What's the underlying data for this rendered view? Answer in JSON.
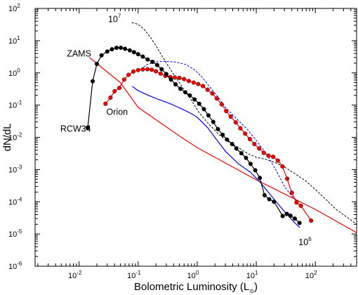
{
  "chart_data": {
    "type": "line",
    "xscale": "log",
    "yscale": "log",
    "xlim": [
      0.0018,
      500
    ],
    "ylim": [
      1e-06,
      100
    ],
    "xticks": [
      {
        "base": "10",
        "exp": "-2",
        "value": 0.01
      },
      {
        "base": "10",
        "exp": "-1",
        "value": 0.1
      },
      {
        "base": "10",
        "exp": "0",
        "value": 1
      },
      {
        "base": "10",
        "exp": "1",
        "value": 10
      },
      {
        "base": "10",
        "exp": "2",
        "value": 100
      }
    ],
    "yticks": [
      {
        "base": "10",
        "exp": "-6",
        "value": 1e-06
      },
      {
        "base": "10",
        "exp": "-5",
        "value": 1e-05
      },
      {
        "base": "10",
        "exp": "-4",
        "value": 0.0001
      },
      {
        "base": "10",
        "exp": "-3",
        "value": 0.001
      },
      {
        "base": "10",
        "exp": "-2",
        "value": 0.01
      },
      {
        "base": "10",
        "exp": "-1",
        "value": 0.1
      },
      {
        "base": "10",
        "exp": "0",
        "value": 1
      },
      {
        "base": "10",
        "exp": "1",
        "value": 10
      },
      {
        "base": "10",
        "exp": "2",
        "value": 100
      }
    ],
    "xlabel": "Bolometric Luminosity (L",
    "xlabel_sub": "⊙",
    "xlabel_close": ")",
    "ylabel": "dN/dL",
    "grid": false,
    "series": [
      {
        "name": "RCW34",
        "color": "#000000",
        "style": "solid-markers",
        "x": [
          0.014,
          0.017,
          0.02,
          0.024,
          0.03,
          0.036,
          0.043,
          0.051,
          0.06,
          0.072,
          0.085,
          0.1,
          0.12,
          0.145,
          0.175,
          0.21,
          0.25,
          0.3,
          0.36,
          0.43,
          0.52,
          0.63,
          0.75,
          0.9,
          1.08,
          1.3,
          1.55,
          1.87,
          2.24,
          2.7,
          3.2,
          3.9,
          4.6,
          5.6,
          6.7,
          8.0,
          9.6,
          11.5,
          13.8,
          16.6,
          20.0,
          28.0,
          33.0,
          38.0,
          45.0,
          54.0
        ],
        "y": [
          0.02,
          0.55,
          1.9,
          3.5,
          4.6,
          5.4,
          6.0,
          6.0,
          5.6,
          5.0,
          4.4,
          3.8,
          3.2,
          2.6,
          2.2,
          1.75,
          1.3,
          0.92,
          0.62,
          0.44,
          0.32,
          0.25,
          0.2,
          0.15,
          0.11,
          0.075,
          0.048,
          0.03,
          0.018,
          0.012,
          0.0085,
          0.0062,
          0.0045,
          0.0032,
          0.0023,
          0.0015,
          0.00095,
          0.00055,
          0.00016,
          0.00012,
          0.0001,
          3.6e-05,
          4.2e-05,
          3.7e-05,
          3e-05,
          2.2e-05
        ]
      },
      {
        "name": "Orion",
        "color": "#ff0000",
        "style": "solid-markers",
        "x": [
          0.028,
          0.034,
          0.04,
          0.048,
          0.058,
          0.069,
          0.083,
          0.1,
          0.12,
          0.144,
          0.17,
          0.2,
          0.24,
          0.29,
          0.35,
          0.42,
          0.5,
          0.6,
          0.72,
          0.87,
          1.04,
          1.25,
          1.5,
          1.8,
          2.15,
          2.6,
          3.1,
          3.7,
          4.5,
          5.4,
          6.5,
          7.8,
          9.3,
          11.2,
          13.4,
          16.1,
          19.3,
          23.2,
          27.8,
          33.4,
          40.0,
          48.0,
          57.0,
          85.0
        ],
        "y": [
          0.11,
          0.17,
          0.27,
          0.34,
          0.62,
          0.87,
          1.1,
          1.22,
          1.28,
          1.3,
          1.25,
          1.12,
          0.95,
          0.8,
          0.74,
          0.72,
          0.7,
          0.64,
          0.56,
          0.5,
          0.45,
          0.39,
          0.3,
          0.23,
          0.16,
          0.105,
          0.065,
          0.044,
          0.029,
          0.019,
          0.013,
          0.0088,
          0.0062,
          0.0045,
          0.0033,
          0.0027,
          0.0025,
          0.0019,
          0.00125,
          0.00052,
          0.00019,
          9.5e-05,
          7.5e-05,
          2.6e-05
        ]
      },
      {
        "name": "ZAMS",
        "color": "#ff0000",
        "style": "solid",
        "x": [
          0.015,
          0.05,
          0.1,
          0.5,
          1,
          10,
          100,
          500
        ],
        "y": [
          3.0,
          0.5,
          0.085,
          0.011,
          0.0048,
          0.00048,
          5.8e-05,
          1.1e-05
        ]
      },
      {
        "name": "",
        "color": "#0000ff",
        "style": "solid",
        "x": [
          0.08,
          0.1,
          0.15,
          0.22,
          0.35,
          0.55,
          0.8,
          1.0,
          1.5,
          2.0,
          3.0,
          5.0,
          8.0,
          12.0,
          20.0,
          30.0,
          45.0,
          55.0
        ],
        "y": [
          0.38,
          0.28,
          0.2,
          0.15,
          0.11,
          0.076,
          0.054,
          0.042,
          0.02,
          0.0098,
          0.0037,
          0.0015,
          0.00082,
          0.00038,
          0.00012,
          5e-05,
          2.2e-05,
          1.6e-05
        ]
      },
      {
        "name": "",
        "color": "#0000ff",
        "style": "dashed",
        "x": [
          0.1,
          0.14,
          0.2,
          0.3,
          0.45,
          0.65,
          0.9,
          1.2,
          1.6,
          2.2,
          3.0,
          4.5,
          7.0,
          10.0,
          15.0,
          22.0,
          30.0,
          40.0,
          55.0
        ],
        "y": [
          1.1,
          1.8,
          2.2,
          2.3,
          2.15,
          1.8,
          1.25,
          0.75,
          0.38,
          0.19,
          0.085,
          0.04,
          0.018,
          0.008,
          0.003,
          0.0009,
          0.0003,
          0.00015,
          9e-05
        ]
      },
      {
        "name": "",
        "color": "#000000",
        "style": "dashed",
        "x": [
          0.078,
          0.085,
          0.095,
          0.11,
          0.13,
          0.16,
          0.2,
          0.25,
          0.32,
          0.4,
          0.55,
          0.8,
          1.1,
          1.6,
          2.3,
          3.3,
          5.0,
          7.0,
          10.0,
          14.0,
          20.0,
          30.0,
          45.0,
          70.0,
          100.0,
          150.0,
          220.0,
          500.0
        ],
        "y": [
          36.0,
          35.0,
          33.0,
          28.0,
          21.0,
          13.0,
          7.0,
          3.5,
          1.7,
          0.9,
          0.38,
          0.14,
          0.055,
          0.025,
          0.0125,
          0.0075,
          0.0048,
          0.0032,
          0.0024,
          0.0021,
          0.0017,
          0.0012,
          0.00075,
          0.00043,
          0.00024,
          0.00012,
          6e-05,
          2e-05
        ]
      }
    ],
    "annotations": [
      {
        "text": "ZAMS",
        "x": 0.0062,
        "y": 3.2
      },
      {
        "text": "Orion",
        "x": 0.029,
        "y": 0.05
      },
      {
        "text": "RCW34",
        "x": 0.0048,
        "y": 0.015
      },
      {
        "text": "10",
        "sup": "7",
        "x": 0.031,
        "y": 38
      },
      {
        "text": "10",
        "sup": "6",
        "x": 52,
        "y": 4.5e-06
      }
    ]
  }
}
